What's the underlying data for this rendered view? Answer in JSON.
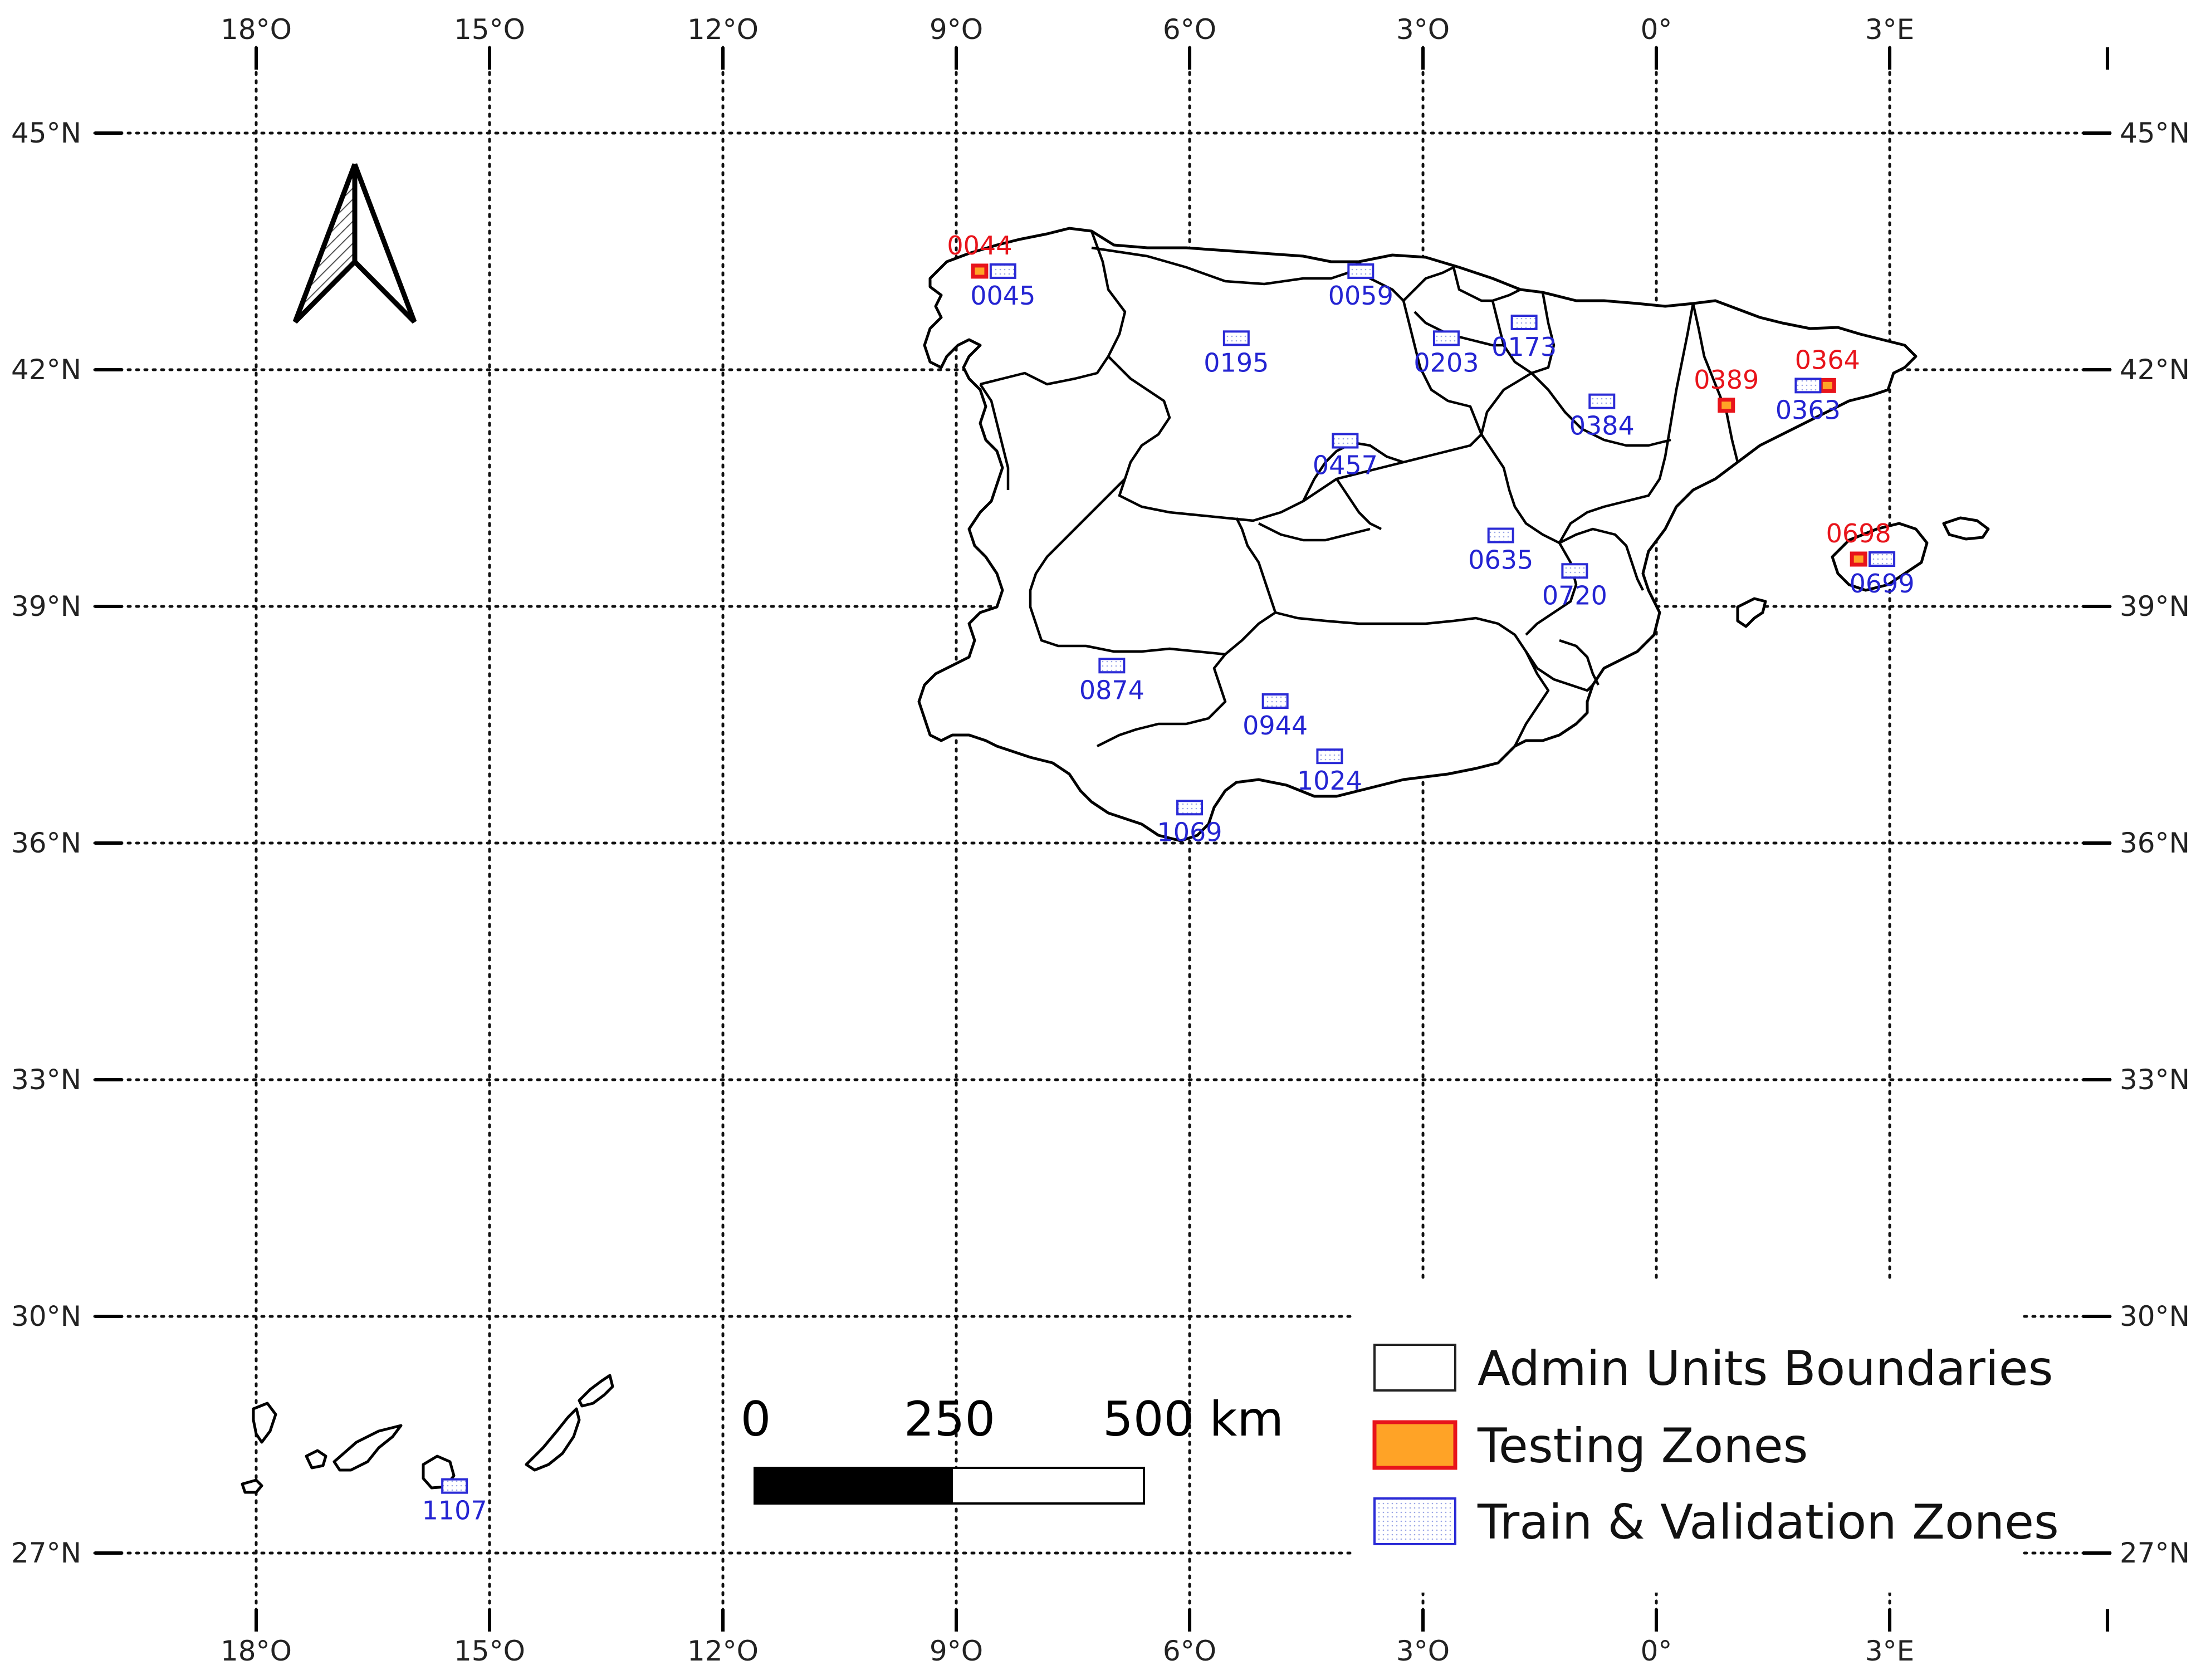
{
  "lon_labels_top": [
    "18°O",
    "15°O",
    "12°O",
    "9°O",
    "6°O",
    "3°O",
    "0°",
    "3°E"
  ],
  "lon_labels_bottom": [
    "18°O",
    "15°O",
    "12°O",
    "9°O",
    "6°O",
    "3°O",
    "0°",
    "3°E"
  ],
  "lat_labels_left": [
    "45°N",
    "42°N",
    "39°N",
    "36°N",
    "33°N",
    "30°N",
    "27°N"
  ],
  "lat_labels_right": [
    "45°N",
    "42°N",
    "39°N",
    "36°N",
    "33°N",
    "30°N",
    "27°N"
  ],
  "zones": [
    {
      "id": "0044",
      "type": "testing",
      "lon": -8.7,
      "lat": 43.25
    },
    {
      "id": "0045",
      "type": "train",
      "lon": -8.4,
      "lat": 43.25
    },
    {
      "id": "0059",
      "type": "train",
      "lon": -3.8,
      "lat": 43.25
    },
    {
      "id": "0173",
      "type": "train",
      "lon": -1.7,
      "lat": 42.6
    },
    {
      "id": "0195",
      "type": "train",
      "lon": -5.4,
      "lat": 42.4
    },
    {
      "id": "0203",
      "type": "train",
      "lon": -2.7,
      "lat": 42.4
    },
    {
      "id": "0364",
      "type": "testing",
      "lon": 2.2,
      "lat": 41.8
    },
    {
      "id": "0363",
      "type": "train",
      "lon": 1.95,
      "lat": 41.8
    },
    {
      "id": "0389",
      "type": "testing",
      "lon": 0.9,
      "lat": 41.55
    },
    {
      "id": "0384",
      "type": "train",
      "lon": -0.7,
      "lat": 41.6
    },
    {
      "id": "0457",
      "type": "train",
      "lon": -4.0,
      "lat": 41.1
    },
    {
      "id": "0635",
      "type": "train",
      "lon": -2.0,
      "lat": 39.9
    },
    {
      "id": "0698",
      "type": "testing",
      "lon": 2.6,
      "lat": 39.6
    },
    {
      "id": "0699",
      "type": "train",
      "lon": 2.9,
      "lat": 39.6
    },
    {
      "id": "0720",
      "type": "train",
      "lon": -1.05,
      "lat": 39.45
    },
    {
      "id": "0874",
      "type": "train",
      "lon": -7.0,
      "lat": 38.25
    },
    {
      "id": "0944",
      "type": "train",
      "lon": -4.9,
      "lat": 37.8
    },
    {
      "id": "1024",
      "type": "train",
      "lon": -4.2,
      "lat": 37.1
    },
    {
      "id": "1069",
      "type": "train",
      "lon": -6.0,
      "lat": 36.45
    },
    {
      "id": "1107",
      "type": "train",
      "lon": -15.45,
      "lat": 27.85
    }
  ],
  "scale_bar": {
    "labels": [
      "0",
      "250",
      "500 km"
    ]
  },
  "legend": {
    "items": [
      {
        "label": "Admin Units Boundaries",
        "kind": "admin",
        "fill": "#ffffff",
        "stroke": "#222222"
      },
      {
        "label": "Testing Zones",
        "kind": "testing",
        "fill": "#ffa326",
        "stroke": "#e8141b"
      },
      {
        "label": "Train & Validation Zones",
        "kind": "train",
        "fill": "#eef2ff",
        "stroke": "#2b2bd6"
      }
    ]
  },
  "colors": {
    "testing_label": "#e8141b",
    "train_label": "#2424d2",
    "grid": "#111111"
  },
  "icons": {
    "north_arrow": "north-arrow-icon"
  }
}
